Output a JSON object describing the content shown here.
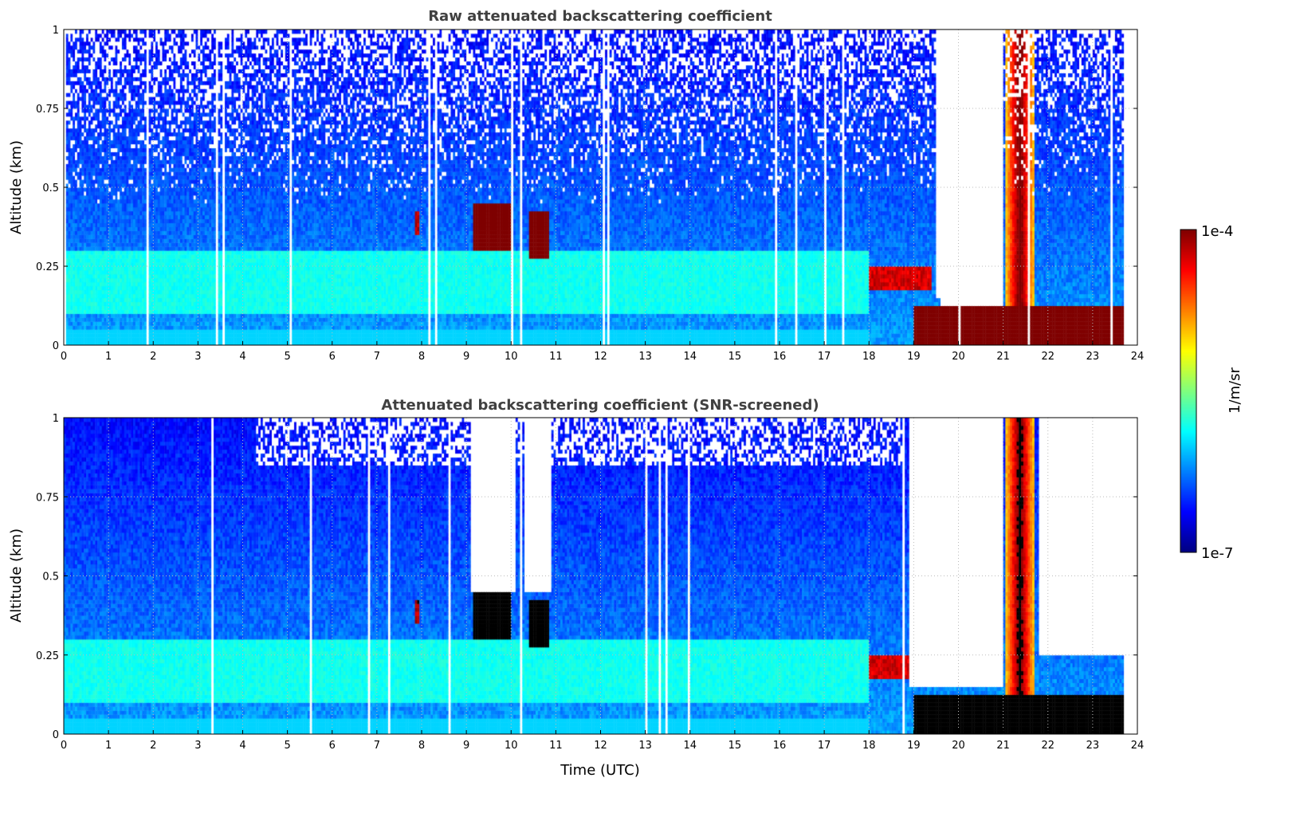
{
  "chart_data": [
    {
      "type": "heatmap",
      "title": "Raw attenuated backscattering coefficient",
      "xlabel": "",
      "ylabel": "Altitude (km)",
      "xlim": [
        0,
        24
      ],
      "ylim": [
        0,
        1
      ],
      "screened": false
    },
    {
      "type": "heatmap",
      "title": "Attenuated backscattering coefficient (SNR-screened)",
      "xlabel": "Time (UTC)",
      "ylabel": "Altitude (km)",
      "xlim": [
        0,
        24
      ],
      "ylim": [
        0,
        1
      ],
      "screened": true
    }
  ],
  "x_ticks": [
    "0",
    "1",
    "2",
    "3",
    "4",
    "5",
    "6",
    "7",
    "8",
    "9",
    "10",
    "11",
    "12",
    "13",
    "14",
    "15",
    "16",
    "17",
    "18",
    "19",
    "20",
    "21",
    "22",
    "23",
    "24"
  ],
  "y_ticks": [
    "0",
    "0.25",
    "0.5",
    "0.75",
    "1"
  ],
  "grid": true,
  "colorbar": {
    "label": "1/m/sr",
    "min_label": "1e-7",
    "max_label": "1e-4",
    "log_min": -7,
    "log_max": -4,
    "colormap": "jet",
    "saturated_color_screened": "#000000"
  },
  "features": [
    {
      "name": "cloud",
      "t": [
        9.15,
        10.0
      ],
      "alt": [
        0.3,
        0.45
      ],
      "log": -4.0
    },
    {
      "name": "cloud",
      "t": [
        10.4,
        10.85
      ],
      "alt": [
        0.28,
        0.43
      ],
      "log": -4.0
    },
    {
      "name": "cloud",
      "t": [
        7.85,
        7.95
      ],
      "alt": [
        0.35,
        0.43
      ],
      "log": -4.3
    },
    {
      "name": "cloud",
      "t": [
        18.0,
        19.4
      ],
      "alt": [
        0.17,
        0.25
      ],
      "log": -4.4
    },
    {
      "name": "low-layer",
      "t": [
        19.0,
        23.7
      ],
      "alt": [
        0.0,
        0.12
      ],
      "log": -4.0
    },
    {
      "name": "column",
      "t": [
        21.05,
        21.7
      ],
      "alt": [
        0.0,
        1.0
      ],
      "log": -4.6
    },
    {
      "name": "aerosol",
      "t": [
        0,
        18
      ],
      "alt": [
        0.1,
        0.3
      ],
      "log": -5.9
    }
  ]
}
